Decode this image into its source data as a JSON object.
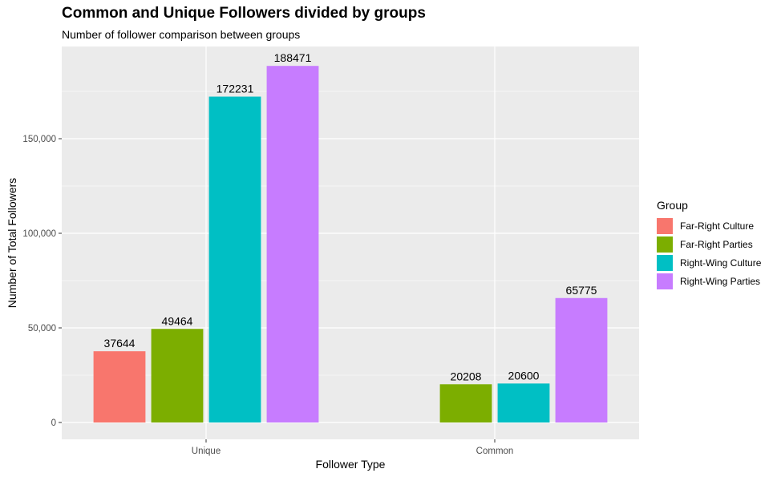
{
  "chart_data": {
    "type": "bar",
    "title": "Common and Unique Followers divided by groups",
    "subtitle": "Number of follower comparison between groups",
    "xlabel": "Follower Type",
    "ylabel": "Number of Total Followers",
    "categories": [
      "Unique",
      "Common"
    ],
    "ylim": [
      0,
      200000
    ],
    "yticks": [
      0,
      50000,
      100000,
      150000
    ],
    "ytick_labels": [
      "0",
      "50,000",
      "100,000",
      "150,000"
    ],
    "grid": true,
    "legend": {
      "title": "Group",
      "position": "right"
    },
    "series": [
      {
        "name": "Far-Right Culture",
        "color": "#F8766D",
        "values": [
          37644,
          null
        ],
        "labels": [
          "37644",
          ""
        ]
      },
      {
        "name": "Far-Right Parties",
        "color": "#7CAE00",
        "values": [
          49464,
          20208
        ],
        "labels": [
          "49464",
          "20208"
        ]
      },
      {
        "name": "Right-Wing Culture",
        "color": "#00BFC4",
        "values": [
          172231,
          20600
        ],
        "labels": [
          "172231",
          "20600"
        ]
      },
      {
        "name": "Right-Wing Parties",
        "color": "#C77CFF",
        "values": [
          188471,
          65775
        ],
        "labels": [
          "188471",
          "65775"
        ]
      }
    ]
  }
}
